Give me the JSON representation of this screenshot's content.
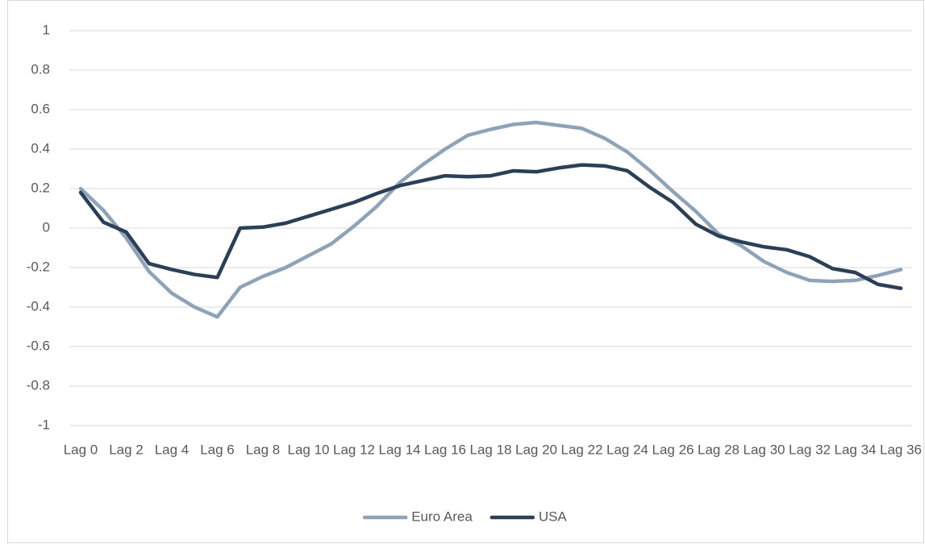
{
  "chart_data": {
    "type": "line",
    "categories": [
      "Lag 0",
      null,
      "Lag 2",
      null,
      "Lag 4",
      null,
      "Lag 6",
      null,
      "Lag 8",
      null,
      "Lag 10",
      null,
      "Lag 12",
      null,
      "Lag 14",
      null,
      "Lag 16",
      null,
      "Lag 18",
      null,
      "Lag 20",
      null,
      "Lag 22",
      null,
      "Lag 24",
      null,
      "Lag 26",
      null,
      "Lag 28",
      null,
      "Lag 30",
      null,
      "Lag 32",
      null,
      "Lag 34",
      null,
      "Lag 36"
    ],
    "series": [
      {
        "name": "Euro Area",
        "color": "#8fa3b8",
        "values": [
          0.2,
          0.09,
          -0.05,
          -0.22,
          -0.33,
          -0.4,
          -0.45,
          -0.3,
          -0.245,
          -0.2,
          -0.14,
          -0.08,
          0.01,
          0.11,
          0.23,
          0.32,
          0.4,
          0.47,
          0.5,
          0.525,
          0.535,
          0.52,
          0.505,
          0.455,
          0.385,
          0.29,
          0.185,
          0.085,
          -0.03,
          -0.09,
          -0.17,
          -0.225,
          -0.265,
          -0.27,
          -0.265,
          -0.24,
          -0.21
        ]
      },
      {
        "name": "USA",
        "color": "#2b3f57",
        "values": [
          0.18,
          0.03,
          -0.02,
          -0.18,
          -0.21,
          -0.235,
          -0.25,
          0.0,
          0.005,
          0.025,
          0.06,
          0.095,
          0.13,
          0.175,
          0.215,
          0.24,
          0.265,
          0.26,
          0.265,
          0.29,
          0.285,
          0.305,
          0.32,
          0.315,
          0.29,
          0.205,
          0.13,
          0.02,
          -0.04,
          -0.07,
          -0.095,
          -0.11,
          -0.145,
          -0.205,
          -0.225,
          -0.285,
          -0.305
        ]
      }
    ],
    "ylim": [
      -1,
      1
    ],
    "yticks": [
      1,
      0.8,
      0.6,
      0.4,
      0.2,
      0,
      -0.2,
      -0.4,
      -0.6,
      -0.8,
      -1
    ],
    "grid": true,
    "legend": "bottom"
  }
}
